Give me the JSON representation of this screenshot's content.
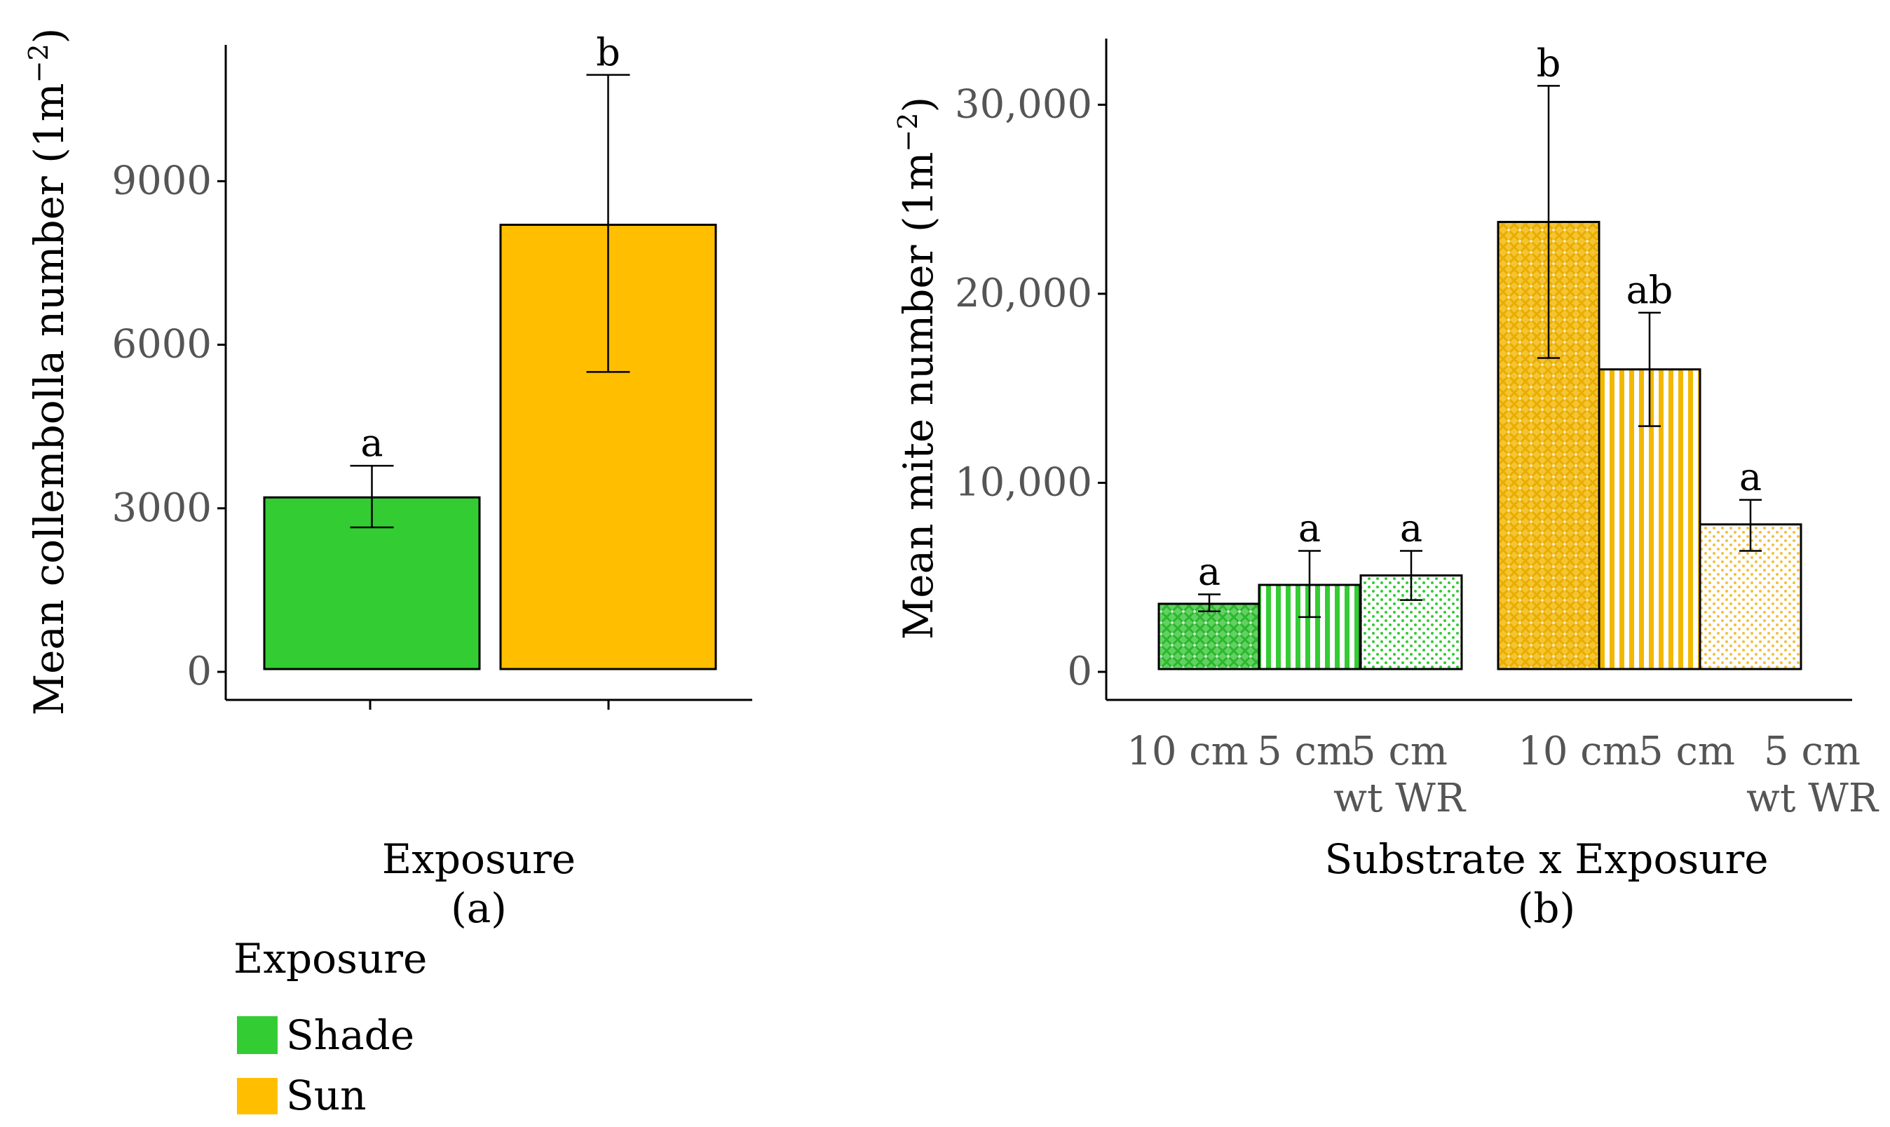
{
  "chart_data": [
    {
      "type": "bar",
      "panel": "(a)",
      "xlabel": "Exposure",
      "ylabel_main": "Mean collembolla number (1m",
      "ylabel_sup": "−2",
      "ylabel_close": ")",
      "ylim": [
        0,
        11500
      ],
      "yticks": [
        0,
        3000,
        6000,
        9000
      ],
      "ytick_labels": [
        "0",
        "3000",
        "6000",
        "9000"
      ],
      "categories": [
        "Shade",
        "Sun"
      ],
      "values": [
        3200,
        8200
      ],
      "err_low": [
        2650,
        5500
      ],
      "err_high": [
        3780,
        10950
      ],
      "sig_letters": [
        "a",
        "b"
      ],
      "colors": [
        "#33cc33",
        "#ffbf00"
      ]
    },
    {
      "type": "bar",
      "panel": "(b)",
      "xlabel": "Substrate x Exposure",
      "ylabel_main": "Mean  mite number (1m",
      "ylabel_sup": "−2",
      "ylabel_close": ")",
      "ylim": [
        0,
        33500
      ],
      "yticks": [
        0,
        10000,
        20000,
        30000
      ],
      "ytick_labels": [
        "0",
        "10,000",
        "20,000",
        "30,000"
      ],
      "categories": [
        {
          "line1": "10 cm",
          "line2": "",
          "exposure": "Shade",
          "pattern": "cross"
        },
        {
          "line1": "5 cm",
          "line2": "",
          "exposure": "Shade",
          "pattern": "vertical"
        },
        {
          "line1": "5 cm",
          "line2": "wt WR",
          "exposure": "Shade",
          "pattern": "dots"
        },
        {
          "line1": "10 cm",
          "line2": "",
          "exposure": "Sun",
          "pattern": "cross"
        },
        {
          "line1": "5 cm",
          "line2": "",
          "exposure": "Sun",
          "pattern": "vertical"
        },
        {
          "line1": "5 cm",
          "line2": "wt WR",
          "exposure": "Sun",
          "pattern": "dots"
        }
      ],
      "values": [
        3600,
        4600,
        5100,
        23800,
        16000,
        7800
      ],
      "err_low": [
        3200,
        2900,
        3800,
        16600,
        13000,
        6400
      ],
      "err_high": [
        4100,
        6400,
        6400,
        31000,
        19000,
        9100
      ],
      "sig_letters": [
        "a",
        "a",
        "a",
        "b",
        "ab",
        "a"
      ]
    }
  ],
  "panel_labels": {
    "a": "(a)",
    "b": "(b)"
  },
  "legend": {
    "title": "Exposure",
    "items": [
      {
        "label": "Shade",
        "color": "#33cc33"
      },
      {
        "label": "Sun",
        "color": "#ffbf00"
      }
    ]
  }
}
